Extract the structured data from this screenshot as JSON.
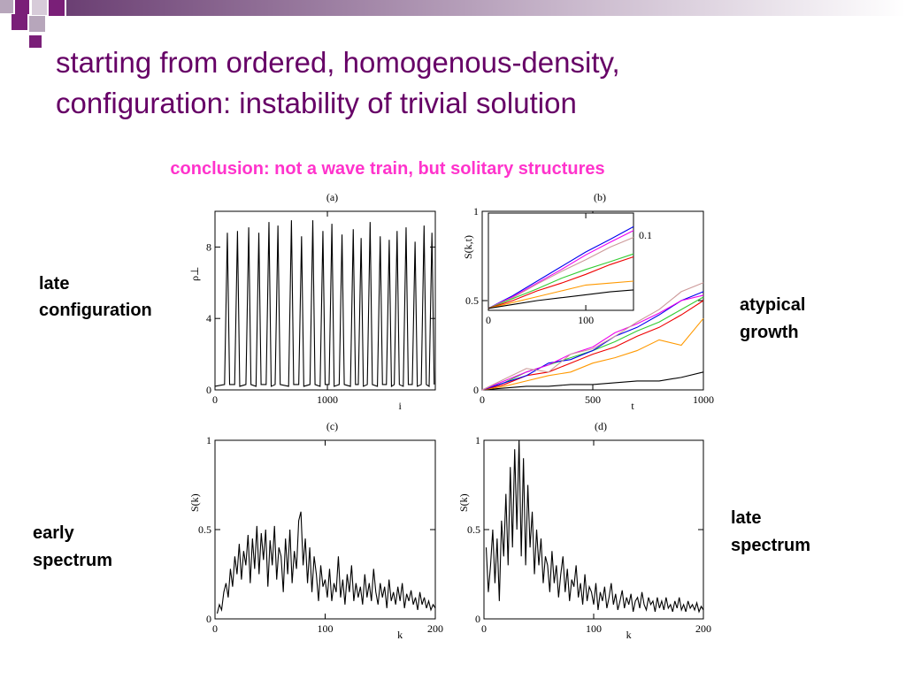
{
  "slide": {
    "title": [
      "starting from ordered, homogenous-density,",
      "configuration: instability of trivial solution"
    ],
    "subtitle": "conclusion: not a wave train, but solitary structures",
    "labels": [
      [
        "late",
        "configuration"
      ],
      [
        "atypical",
        "growth"
      ],
      [
        "early",
        "spectrum"
      ],
      [
        "late",
        "spectrum"
      ]
    ]
  },
  "chart_data": [
    {
      "type": "line",
      "title": "(a)",
      "xlabel": "i",
      "ylabel": "ρ⊥",
      "x": [
        0,
        85,
        110,
        130,
        175,
        200,
        220,
        275,
        300,
        320,
        365,
        390,
        410,
        455,
        480,
        500,
        535,
        560,
        580,
        655,
        680,
        700,
        745,
        770,
        790,
        845,
        870,
        890,
        935,
        960,
        980,
        1015,
        1040,
        1060,
        1105,
        1130,
        1150,
        1205,
        1230,
        1250,
        1275,
        1300,
        1320,
        1355,
        1380,
        1400,
        1445,
        1470,
        1490,
        1525,
        1550,
        1570,
        1595,
        1620,
        1640,
        1675,
        1700,
        1720,
        1755,
        1780,
        1800,
        1835,
        1860,
        1880,
        1905,
        1930,
        1950
      ],
      "series": [
        {
          "color": "#000000",
          "values": [
            0.2,
            0.3,
            8.8,
            0.3,
            0.3,
            8.9,
            0.2,
            0.3,
            9.1,
            0.3,
            0.2,
            8.8,
            0.3,
            0.3,
            9.4,
            0.2,
            0.3,
            9.2,
            0.3,
            0.2,
            9.5,
            0.3,
            0.3,
            8.6,
            0.2,
            0.3,
            9.5,
            0.3,
            0.2,
            8.9,
            0.3,
            0.3,
            9.3,
            0.2,
            0.3,
            8.7,
            0.3,
            0.2,
            9.0,
            0.3,
            0.3,
            8.5,
            0.2,
            0.3,
            9.4,
            0.3,
            0.2,
            8.6,
            0.3,
            0.3,
            8.4,
            0.2,
            0.3,
            8.9,
            0.3,
            0.2,
            9.1,
            0.3,
            0.3,
            8.3,
            0.2,
            0.3,
            9.2,
            0.3,
            0.2,
            8.8,
            0.3
          ]
        }
      ],
      "xlim": [
        0,
        1960
      ],
      "ylim": [
        0,
        10
      ],
      "xticks": [
        0,
        1000
      ],
      "yticks": [
        0,
        4,
        8
      ]
    },
    {
      "type": "line",
      "title": "(b)",
      "xlabel": "t",
      "x": [
        0,
        100,
        200,
        300,
        400,
        500,
        600,
        700,
        800,
        900,
        1000
      ],
      "series": [
        {
          "color": "#000000",
          "values": [
            0,
            0.01,
            0.02,
            0.02,
            0.03,
            0.03,
            0.04,
            0.05,
            0.05,
            0.07,
            0.1
          ]
        },
        {
          "color": "#ff9900",
          "values": [
            0,
            0.02,
            0.05,
            0.08,
            0.1,
            0.15,
            0.18,
            0.22,
            0.28,
            0.25,
            0.4
          ]
        },
        {
          "color": "#ee0000",
          "values": [
            0,
            0.03,
            0.08,
            0.1,
            0.15,
            0.2,
            0.24,
            0.3,
            0.35,
            0.42,
            0.5
          ]
        },
        {
          "color": "#33cc33",
          "values": [
            0,
            0.04,
            0.1,
            0.14,
            0.18,
            0.22,
            0.27,
            0.33,
            0.38,
            0.45,
            0.52
          ]
        },
        {
          "color": "#0000ee",
          "values": [
            0,
            0.04,
            0.08,
            0.15,
            0.17,
            0.22,
            0.3,
            0.35,
            0.42,
            0.5,
            0.55
          ]
        },
        {
          "color": "#ee00ee",
          "values": [
            0,
            0.05,
            0.1,
            0.14,
            0.2,
            0.24,
            0.32,
            0.37,
            0.43,
            0.5,
            0.53
          ]
        },
        {
          "color": "#cc9999",
          "values": [
            0,
            0.06,
            0.12,
            0.1,
            0.2,
            0.23,
            0.3,
            0.38,
            0.45,
            0.55,
            0.6
          ]
        }
      ],
      "xlim": [
        0,
        1000
      ],
      "ylim": [
        0,
        1
      ],
      "xticks": [
        0,
        500,
        1000
      ],
      "yticks": [
        0,
        0.5,
        1
      ]
    },
    {
      "type": "line",
      "ylabel": "S(k,t)",
      "annotation": "0.1",
      "x": [
        0,
        25,
        50,
        75,
        100,
        125,
        149
      ],
      "series": [
        {
          "color": "#0000ee",
          "values": [
            0.02,
            0.15,
            0.3,
            0.45,
            0.6,
            0.73,
            0.86
          ]
        },
        {
          "color": "#ee00ee",
          "values": [
            0.02,
            0.14,
            0.28,
            0.42,
            0.57,
            0.7,
            0.82
          ]
        },
        {
          "color": "#cc9999",
          "values": [
            0.02,
            0.13,
            0.27,
            0.4,
            0.52,
            0.65,
            0.75
          ]
        },
        {
          "color": "#33cc33",
          "values": [
            0.02,
            0.12,
            0.22,
            0.33,
            0.42,
            0.5,
            0.58
          ]
        },
        {
          "color": "#ee0000",
          "values": [
            0.02,
            0.1,
            0.2,
            0.28,
            0.37,
            0.47,
            0.55
          ]
        },
        {
          "color": "#ff9900",
          "values": [
            0.02,
            0.08,
            0.14,
            0.2,
            0.26,
            0.28,
            0.3
          ]
        },
        {
          "color": "#000000",
          "values": [
            0.02,
            0.06,
            0.1,
            0.13,
            0.16,
            0.19,
            0.21
          ]
        }
      ],
      "xlim": [
        0,
        149
      ],
      "ylim": [
        0,
        1
      ],
      "xticks": [
        0,
        100
      ],
      "yticks": []
    },
    {
      "type": "line",
      "title": "(c)",
      "xlabel": "k",
      "ylabel": "S(k)",
      "x": [
        2,
        4,
        6,
        8,
        10,
        12,
        14,
        16,
        18,
        20,
        22,
        24,
        26,
        28,
        30,
        32,
        34,
        36,
        38,
        40,
        42,
        44,
        46,
        48,
        50,
        52,
        54,
        56,
        58,
        60,
        62,
        64,
        66,
        68,
        70,
        72,
        74,
        76,
        78,
        80,
        82,
        84,
        86,
        88,
        90,
        92,
        94,
        96,
        98,
        100,
        102,
        104,
        106,
        108,
        110,
        112,
        114,
        116,
        118,
        120,
        122,
        124,
        126,
        128,
        130,
        132,
        134,
        136,
        138,
        140,
        142,
        144,
        146,
        148,
        150,
        152,
        154,
        156,
        158,
        160,
        162,
        164,
        166,
        168,
        170,
        172,
        174,
        176,
        178,
        180,
        182,
        184,
        186,
        188,
        190,
        192,
        194,
        196,
        198,
        200
      ],
      "series": [
        {
          "color": "#000000",
          "values": [
            0.03,
            0.08,
            0.05,
            0.15,
            0.2,
            0.12,
            0.28,
            0.18,
            0.35,
            0.25,
            0.42,
            0.22,
            0.38,
            0.3,
            0.47,
            0.2,
            0.45,
            0.28,
            0.52,
            0.25,
            0.48,
            0.33,
            0.5,
            0.18,
            0.44,
            0.3,
            0.52,
            0.22,
            0.4,
            0.35,
            0.15,
            0.45,
            0.25,
            0.5,
            0.2,
            0.38,
            0.28,
            0.55,
            0.6,
            0.3,
            0.45,
            0.2,
            0.4,
            0.15,
            0.35,
            0.25,
            0.1,
            0.3,
            0.18,
            0.22,
            0.12,
            0.28,
            0.1,
            0.2,
            0.15,
            0.35,
            0.12,
            0.22,
            0.08,
            0.25,
            0.15,
            0.3,
            0.1,
            0.2,
            0.12,
            0.18,
            0.08,
            0.25,
            0.12,
            0.2,
            0.1,
            0.28,
            0.15,
            0.08,
            0.2,
            0.12,
            0.18,
            0.06,
            0.22,
            0.1,
            0.15,
            0.08,
            0.18,
            0.1,
            0.2,
            0.06,
            0.14,
            0.1,
            0.16,
            0.08,
            0.12,
            0.05,
            0.15,
            0.08,
            0.12,
            0.06,
            0.1,
            0.05,
            0.08,
            0.06
          ]
        }
      ],
      "xlim": [
        0,
        200
      ],
      "ylim": [
        0,
        1
      ],
      "xticks": [
        0,
        100,
        200
      ],
      "yticks": [
        0,
        0.5,
        1
      ]
    },
    {
      "type": "line",
      "title": "(d)",
      "xlabel": "k",
      "ylabel": "S(k)",
      "x": [
        2,
        4,
        6,
        8,
        10,
        12,
        14,
        16,
        18,
        20,
        22,
        24,
        26,
        28,
        30,
        32,
        34,
        36,
        38,
        40,
        42,
        44,
        46,
        48,
        50,
        52,
        54,
        56,
        58,
        60,
        62,
        64,
        66,
        68,
        70,
        72,
        74,
        76,
        78,
        80,
        82,
        84,
        86,
        88,
        90,
        92,
        94,
        96,
        98,
        100,
        102,
        104,
        106,
        108,
        110,
        112,
        114,
        116,
        118,
        120,
        122,
        124,
        126,
        128,
        130,
        132,
        134,
        136,
        138,
        140,
        142,
        144,
        146,
        148,
        150,
        152,
        154,
        156,
        158,
        160,
        162,
        164,
        166,
        168,
        170,
        172,
        174,
        176,
        178,
        180,
        182,
        184,
        186,
        188,
        190,
        192,
        194,
        196,
        198,
        200
      ],
      "series": [
        {
          "color": "#000000",
          "values": [
            0.4,
            0.15,
            0.3,
            0.5,
            0.2,
            0.45,
            0.1,
            0.55,
            0.35,
            0.7,
            0.3,
            0.85,
            0.4,
            0.95,
            0.5,
            1.0,
            0.35,
            0.9,
            0.3,
            0.75,
            0.4,
            0.6,
            0.25,
            0.5,
            0.3,
            0.45,
            0.2,
            0.35,
            0.3,
            0.15,
            0.38,
            0.2,
            0.3,
            0.12,
            0.25,
            0.35,
            0.15,
            0.28,
            0.1,
            0.22,
            0.18,
            0.3,
            0.12,
            0.2,
            0.08,
            0.25,
            0.1,
            0.18,
            0.15,
            0.08,
            0.2,
            0.05,
            0.15,
            0.1,
            0.18,
            0.06,
            0.12,
            0.2,
            0.08,
            0.14,
            0.05,
            0.1,
            0.16,
            0.06,
            0.12,
            0.08,
            0.14,
            0.04,
            0.1,
            0.12,
            0.06,
            0.15,
            0.08,
            0.05,
            0.12,
            0.08,
            0.1,
            0.04,
            0.12,
            0.06,
            0.1,
            0.05,
            0.12,
            0.06,
            0.08,
            0.04,
            0.1,
            0.06,
            0.12,
            0.05,
            0.08,
            0.04,
            0.1,
            0.06,
            0.08,
            0.05,
            0.09,
            0.04,
            0.07,
            0.05
          ]
        }
      ],
      "xlim": [
        0,
        200
      ],
      "ylim": [
        0,
        1
      ],
      "xticks": [
        0,
        100,
        200
      ],
      "yticks": [
        0,
        0.5,
        1
      ]
    }
  ]
}
